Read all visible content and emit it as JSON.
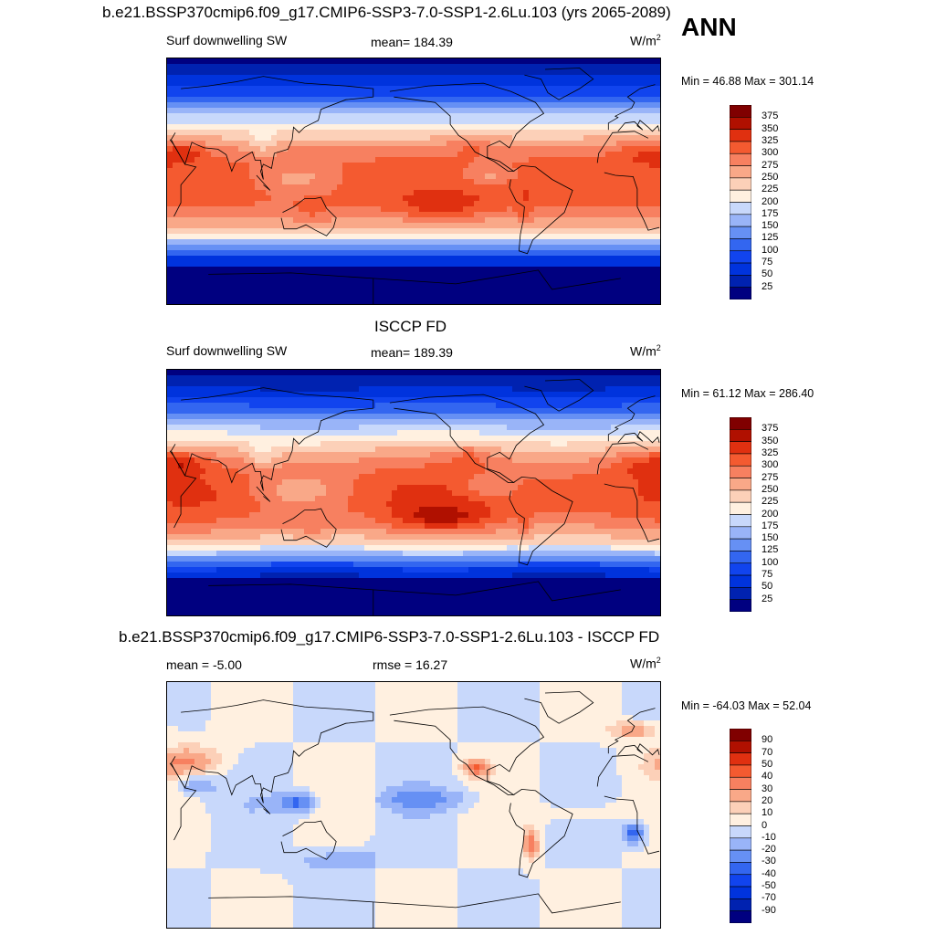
{
  "season": "ANN",
  "panels": [
    {
      "title": "b.e21.BSSP370cmip6.f09_g17.CMIP6-SSP3-7.0-SSP1-2.6Lu.103 (yrs 2065-2089)",
      "left_label": "Surf downwelling SW",
      "center_label": "mean= 184.39",
      "units_base": "W/m",
      "units_sup": "2",
      "minmax": "Min =  46.88 Max = 301.14",
      "type": "abs"
    },
    {
      "title": "ISCCP FD",
      "left_label": "Surf downwelling SW",
      "center_label": "mean= 189.39",
      "units_base": "W/m",
      "units_sup": "2",
      "minmax": "Min =  61.12 Max = 286.40",
      "type": "abs2"
    },
    {
      "title": "b.e21.BSSP370cmip6.f09_g17.CMIP6-SSP3-7.0-SSP1-2.6Lu.103 - ISCCP FD",
      "left_label": "mean =  -5.00",
      "center_label": "rmse =  16.27",
      "units_base": "W/m",
      "units_sup": "2",
      "minmax": "Min = -64.03 Max =  52.04",
      "type": "diff"
    }
  ],
  "chart_data": [
    {
      "type": "heatmap",
      "variable": "Surf downwelling SW",
      "mean": 184.39,
      "min": 46.88,
      "max": 301.14,
      "colorbar_levels": [
        "375",
        "350",
        "325",
        "300",
        "275",
        "250",
        "225",
        "200",
        "175",
        "150",
        "125",
        "100",
        "75",
        "50",
        "25"
      ]
    },
    {
      "type": "heatmap",
      "variable": "Surf downwelling SW",
      "mean": 189.39,
      "min": 61.12,
      "max": 286.4,
      "colorbar_levels": [
        "375",
        "350",
        "325",
        "300",
        "275",
        "250",
        "225",
        "200",
        "175",
        "150",
        "125",
        "100",
        "75",
        "50",
        "25"
      ]
    },
    {
      "type": "heatmap",
      "mean": -5.0,
      "rmse": 16.27,
      "min": -64.03,
      "max": 52.04,
      "colorbar_levels": [
        "90",
        "70",
        "50",
        "40",
        "30",
        "20",
        "10",
        "0",
        "-10",
        "-20",
        "-30",
        "-40",
        "-50",
        "-70",
        "-90"
      ]
    }
  ],
  "colors": {
    "palette": [
      "#000080",
      "#0022b0",
      "#0033dd",
      "#1144ee",
      "#3366f0",
      "#6690f4",
      "#99b4f8",
      "#c8d8fb",
      "#fff0e0",
      "#fcd0b8",
      "#f9a888",
      "#f78060",
      "#f45a30",
      "#e03010",
      "#b01000",
      "#800000"
    ]
  }
}
